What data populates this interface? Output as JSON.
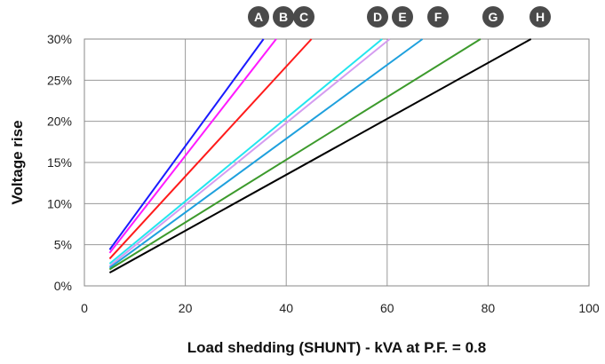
{
  "chart_data": {
    "type": "line",
    "title": "",
    "xlabel": "Load shedding (SHUNT) - kVA at P.F. = 0.8",
    "ylabel": "Voltage rise",
    "xlim": [
      0,
      100
    ],
    "ylim": [
      0,
      30
    ],
    "x_ticks": [
      0,
      20,
      40,
      60,
      80,
      100
    ],
    "x_tick_labels": [
      "0",
      "20",
      "40",
      "60",
      "80",
      "100"
    ],
    "y_ticks": [
      0,
      5,
      10,
      15,
      20,
      25,
      30
    ],
    "y_tick_labels": [
      "0%",
      "5%",
      "10%",
      "15%",
      "20%",
      "25%",
      "30%"
    ],
    "grid": true,
    "series": [
      {
        "name": "A",
        "color": "#1a1aff",
        "x": [
          5,
          35.5
        ],
        "y": [
          4.4,
          30
        ]
      },
      {
        "name": "B",
        "color": "#ff1aff",
        "x": [
          5,
          38
        ],
        "y": [
          4.0,
          30
        ]
      },
      {
        "name": "C",
        "color": "#ff1a1a",
        "x": [
          5,
          45
        ],
        "y": [
          3.3,
          30
        ]
      },
      {
        "name": "D",
        "color": "#22e5ee",
        "x": [
          5,
          59
        ],
        "y": [
          2.7,
          30
        ]
      },
      {
        "name": "E",
        "color": "#d49cf0",
        "x": [
          5,
          60.5
        ],
        "y": [
          2.4,
          30
        ]
      },
      {
        "name": "F",
        "color": "#1ea0dd",
        "x": [
          5,
          67
        ],
        "y": [
          2.2,
          30
        ]
      },
      {
        "name": "G",
        "color": "#3c9a2c",
        "x": [
          5,
          78.5
        ],
        "y": [
          2.0,
          30
        ]
      },
      {
        "name": "H",
        "color": "#000000",
        "x": [
          5,
          88.5
        ],
        "y": [
          1.6,
          30
        ]
      }
    ],
    "legend": {
      "placement": "top",
      "labels": [
        "A",
        "B",
        "C",
        "D",
        "E",
        "F",
        "G",
        "H"
      ],
      "badge_color": "#4a4a4a"
    }
  }
}
